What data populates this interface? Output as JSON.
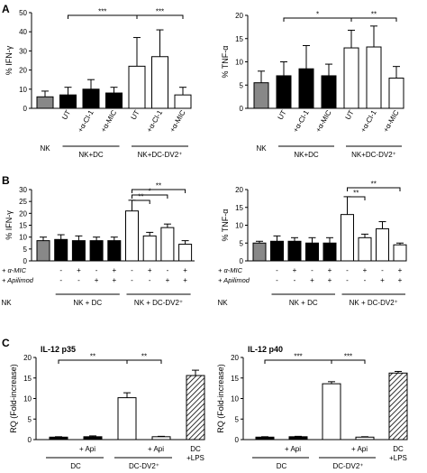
{
  "panels": [
    {
      "letter": "A"
    },
    {
      "letter": "B"
    },
    {
      "letter": "C"
    }
  ],
  "chart_data": [
    {
      "type": "bar",
      "panel": "A",
      "ylabel": "% IFN-γ",
      "ylim": [
        0,
        50
      ],
      "yticks": [
        "0",
        "10",
        "20",
        "30",
        "40",
        "50"
      ],
      "bar_labels": [
        "",
        "UT",
        "+α-Cl-1",
        "+α-MIC",
        "UT",
        "+α-Cl-1",
        "+α-MIC"
      ],
      "values": [
        6,
        7,
        10,
        8,
        22,
        27,
        7
      ],
      "errors": [
        3,
        4,
        5,
        3,
        15,
        14,
        4
      ],
      "fills": [
        "gray",
        "black",
        "black",
        "black",
        "white",
        "white",
        "white"
      ],
      "groups": [
        {
          "label": "NK",
          "bars": [
            0,
            0
          ]
        },
        {
          "label": "NK+DC",
          "bars": [
            1,
            3
          ]
        },
        {
          "label": "NK+DC-DV2⁺",
          "bars": [
            4,
            6
          ]
        }
      ],
      "significance": [
        {
          "from": 1,
          "to": 4,
          "label": "***"
        },
        {
          "from": 4,
          "to": 6,
          "label": "***"
        }
      ]
    },
    {
      "type": "bar",
      "panel": "A",
      "ylabel": "% TNF-α",
      "ylim": [
        0,
        20
      ],
      "yticks": [
        "0",
        "5",
        "10",
        "15",
        "20"
      ],
      "bar_labels": [
        "",
        "UT",
        "+α-Cl-1",
        "+α-MIC",
        "UT",
        "+α-Cl-1",
        "+α-MIC"
      ],
      "values": [
        5.5,
        7,
        8.5,
        7,
        13,
        13.2,
        6.5
      ],
      "errors": [
        2.5,
        3,
        5,
        2.5,
        3.8,
        4.5,
        2.5
      ],
      "fills": [
        "gray",
        "black",
        "black",
        "black",
        "white",
        "white",
        "white"
      ],
      "groups": [
        {
          "label": "NK",
          "bars": [
            0,
            0
          ]
        },
        {
          "label": "NK+DC",
          "bars": [
            1,
            3
          ]
        },
        {
          "label": "NK+DC-DV2⁺",
          "bars": [
            4,
            6
          ]
        }
      ],
      "significance": [
        {
          "from": 1,
          "to": 4,
          "label": "*"
        },
        {
          "from": 4,
          "to": 6,
          "label": "**"
        }
      ]
    },
    {
      "type": "bar",
      "panel": "B",
      "ylabel": "% IFN-γ",
      "ylim": [
        0,
        30
      ],
      "yticks": [
        "0",
        "5",
        "10",
        "15",
        "20",
        "25",
        "30"
      ],
      "values": [
        8.5,
        9,
        8.5,
        8.5,
        8.5,
        21,
        10.5,
        14,
        7
      ],
      "errors": [
        1.5,
        2,
        2,
        1.5,
        1.5,
        4.5,
        1.5,
        1.5,
        1.5
      ],
      "fills": [
        "gray",
        "black",
        "black",
        "black",
        "black",
        "white",
        "white",
        "white",
        "white"
      ],
      "conditions": [
        {
          "label": "+ α-MIC",
          "marks": [
            "",
            "-",
            "+",
            "-",
            "+",
            "-",
            "+",
            "-",
            "+"
          ]
        },
        {
          "label": "+ Apilimod",
          "marks": [
            "",
            "-",
            "-",
            "+",
            "+",
            "-",
            "-",
            "+",
            "+"
          ]
        }
      ],
      "groups": [
        {
          "label": "NK",
          "bars": [
            0,
            0
          ]
        },
        {
          "label": "NK + DC",
          "bars": [
            1,
            4
          ]
        },
        {
          "label": "NK + DC-DV2⁺",
          "bars": [
            5,
            8
          ]
        }
      ],
      "significance": [
        {
          "from": 5,
          "to": 6,
          "label": "**"
        },
        {
          "from": 5,
          "to": 7,
          "label": "*"
        },
        {
          "from": 5,
          "to": 8,
          "label": "**"
        }
      ]
    },
    {
      "type": "bar",
      "panel": "B",
      "ylabel": "% TNF-α",
      "ylim": [
        0,
        20
      ],
      "yticks": [
        "0",
        "5",
        "10",
        "15",
        "20"
      ],
      "values": [
        5,
        5.5,
        5.5,
        5,
        5,
        13,
        6.5,
        9,
        4.5
      ],
      "errors": [
        0.5,
        1.5,
        1,
        1.5,
        1.5,
        5,
        1,
        2,
        0.5
      ],
      "fills": [
        "gray",
        "black",
        "black",
        "black",
        "black",
        "white",
        "white",
        "white",
        "white"
      ],
      "conditions": [
        {
          "label": "+ α-MIC",
          "marks": [
            "",
            "-",
            "+",
            "-",
            "+",
            "-",
            "+",
            "-",
            "+"
          ]
        },
        {
          "label": "+ Apilimod",
          "marks": [
            "",
            "-",
            "-",
            "+",
            "+",
            "-",
            "-",
            "+",
            "+"
          ]
        }
      ],
      "groups": [
        {
          "label": "NK",
          "bars": [
            0,
            0
          ]
        },
        {
          "label": "NK + DC",
          "bars": [
            1,
            4
          ]
        },
        {
          "label": "NK + DC-DV2⁺",
          "bars": [
            5,
            8
          ]
        }
      ],
      "significance": [
        {
          "from": 5,
          "to": 6,
          "label": "**"
        },
        {
          "from": 5,
          "to": 8,
          "label": "**"
        }
      ]
    },
    {
      "type": "bar",
      "panel": "C",
      "title": "IL-12 p35",
      "ylabel": "RQ (Fold-increase)",
      "ylim": [
        0,
        20
      ],
      "yticks": [
        "0",
        "5",
        "10",
        "15",
        "20"
      ],
      "bar_labels": [
        "",
        "+ Api",
        "",
        "+ Api",
        "DC\n+LPS"
      ],
      "values": [
        0.6,
        0.7,
        10.2,
        0.7,
        15.6
      ],
      "errors": [
        0.1,
        0.2,
        1.2,
        0.1,
        1.3
      ],
      "fills": [
        "black",
        "black",
        "white",
        "white",
        "hatch"
      ],
      "groups": [
        {
          "label": "DC",
          "bars": [
            0,
            1
          ]
        },
        {
          "label": "DC-DV2⁺",
          "bars": [
            2,
            3
          ]
        }
      ],
      "significance": [
        {
          "from": 0,
          "to": 2,
          "label": "**"
        },
        {
          "from": 2,
          "to": 3,
          "label": "**"
        }
      ]
    },
    {
      "type": "bar",
      "panel": "C",
      "title": "IL-12 p40",
      "ylabel": "RQ (Fold-increase)",
      "ylim": [
        0,
        20
      ],
      "yticks": [
        "0",
        "5",
        "10",
        "15",
        "20"
      ],
      "bar_labels": [
        "",
        "+ Api",
        "",
        "+ Api",
        "DC\n+LPS"
      ],
      "values": [
        0.6,
        0.7,
        13.6,
        0.6,
        16.2
      ],
      "errors": [
        0.1,
        0.1,
        0.5,
        0.1,
        0.4
      ],
      "fills": [
        "black",
        "black",
        "white",
        "white",
        "hatch"
      ],
      "groups": [
        {
          "label": "DC",
          "bars": [
            0,
            1
          ]
        },
        {
          "label": "DC-DV2⁺",
          "bars": [
            2,
            3
          ]
        }
      ],
      "significance": [
        {
          "from": 0,
          "to": 2,
          "label": "***"
        },
        {
          "from": 2,
          "to": 3,
          "label": "***"
        }
      ]
    }
  ]
}
